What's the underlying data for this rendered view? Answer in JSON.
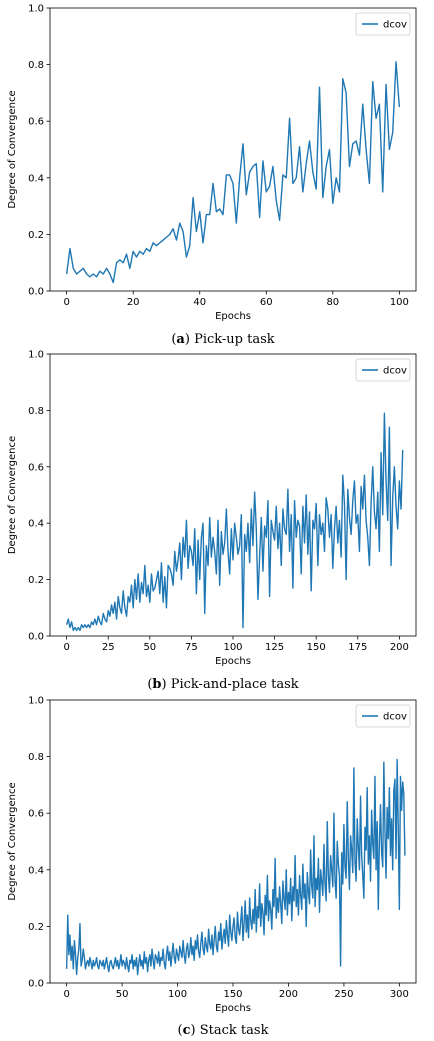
{
  "chart_data": [
    {
      "type": "line",
      "caption_letter": "a",
      "caption_text": " Pick-up task",
      "xlabel": "Epochs",
      "ylabel": "Degree of Convergence",
      "xlim": [
        -5,
        105
      ],
      "ylim": [
        0,
        1.0
      ],
      "xticks": [
        0,
        20,
        40,
        60,
        80,
        100
      ],
      "yticks": [
        0.0,
        0.2,
        0.4,
        0.6,
        0.8,
        1.0
      ],
      "legend": "top-right",
      "grid": false,
      "series": [
        {
          "name": "dcov",
          "color": "#1f77b4",
          "values": [
            0.06,
            0.15,
            0.08,
            0.06,
            0.07,
            0.08,
            0.06,
            0.05,
            0.06,
            0.05,
            0.07,
            0.06,
            0.08,
            0.06,
            0.03,
            0.1,
            0.11,
            0.1,
            0.13,
            0.08,
            0.14,
            0.12,
            0.14,
            0.13,
            0.15,
            0.14,
            0.17,
            0.16,
            0.17,
            0.18,
            0.19,
            0.2,
            0.22,
            0.18,
            0.24,
            0.21,
            0.12,
            0.16,
            0.33,
            0.21,
            0.28,
            0.17,
            0.27,
            0.27,
            0.38,
            0.28,
            0.29,
            0.27,
            0.41,
            0.41,
            0.38,
            0.24,
            0.4,
            0.52,
            0.34,
            0.42,
            0.44,
            0.45,
            0.26,
            0.46,
            0.35,
            0.37,
            0.44,
            0.32,
            0.25,
            0.41,
            0.4,
            0.61,
            0.38,
            0.4,
            0.51,
            0.35,
            0.45,
            0.53,
            0.42,
            0.36,
            0.72,
            0.33,
            0.44,
            0.5,
            0.31,
            0.4,
            0.35,
            0.75,
            0.7,
            0.44,
            0.52,
            0.53,
            0.48,
            0.66,
            0.5,
            0.38,
            0.74,
            0.61,
            0.66,
            0.35,
            0.73,
            0.5,
            0.56,
            0.81,
            0.65
          ]
        }
      ]
    },
    {
      "type": "line",
      "caption_letter": "b",
      "caption_text": " Pick-and-place task",
      "xlabel": "Epochs",
      "ylabel": "Degree of Convergence",
      "xlim": [
        -10,
        210
      ],
      "ylim": [
        0,
        1.0
      ],
      "xticks": [
        0,
        25,
        50,
        75,
        100,
        125,
        150,
        175,
        200
      ],
      "yticks": [
        0.0,
        0.2,
        0.4,
        0.6,
        0.8,
        1.0
      ],
      "legend": "top-right",
      "grid": false,
      "series": [
        {
          "name": "dcov",
          "color": "#1f77b4",
          "values": [
            0.04,
            0.06,
            0.03,
            0.05,
            0.02,
            0.03,
            0.02,
            0.03,
            0.02,
            0.04,
            0.03,
            0.04,
            0.03,
            0.04,
            0.03,
            0.05,
            0.04,
            0.06,
            0.04,
            0.07,
            0.05,
            0.04,
            0.08,
            0.06,
            0.05,
            0.09,
            0.07,
            0.11,
            0.08,
            0.12,
            0.06,
            0.14,
            0.1,
            0.08,
            0.16,
            0.1,
            0.07,
            0.14,
            0.12,
            0.18,
            0.1,
            0.2,
            0.13,
            0.22,
            0.12,
            0.19,
            0.15,
            0.25,
            0.14,
            0.18,
            0.12,
            0.22,
            0.16,
            0.17,
            0.2,
            0.23,
            0.15,
            0.26,
            0.12,
            0.21,
            0.1,
            0.25,
            0.24,
            0.22,
            0.18,
            0.3,
            0.23,
            0.27,
            0.33,
            0.2,
            0.35,
            0.28,
            0.41,
            0.24,
            0.32,
            0.3,
            0.25,
            0.38,
            0.15,
            0.34,
            0.2,
            0.35,
            0.4,
            0.08,
            0.32,
            0.25,
            0.42,
            0.28,
            0.35,
            0.3,
            0.22,
            0.41,
            0.18,
            0.37,
            0.29,
            0.33,
            0.45,
            0.3,
            0.22,
            0.38,
            0.27,
            0.4,
            0.35,
            0.29,
            0.32,
            0.43,
            0.03,
            0.36,
            0.3,
            0.4,
            0.26,
            0.45,
            0.32,
            0.51,
            0.38,
            0.13,
            0.28,
            0.42,
            0.23,
            0.39,
            0.35,
            0.48,
            0.14,
            0.41,
            0.37,
            0.34,
            0.46,
            0.31,
            0.4,
            0.25,
            0.45,
            0.38,
            0.36,
            0.52,
            0.3,
            0.43,
            0.17,
            0.48,
            0.35,
            0.41,
            0.39,
            0.22,
            0.46,
            0.33,
            0.5,
            0.29,
            0.44,
            0.16,
            0.41,
            0.38,
            0.47,
            0.25,
            0.43,
            0.36,
            0.4,
            0.3,
            0.49,
            0.45,
            0.35,
            0.43,
            0.24,
            0.38,
            0.46,
            0.33,
            0.41,
            0.28,
            0.57,
            0.47,
            0.2,
            0.52,
            0.42,
            0.36,
            0.48,
            0.55,
            0.4,
            0.43,
            0.3,
            0.53,
            0.45,
            0.57,
            0.41,
            0.35,
            0.25,
            0.47,
            0.6,
            0.44,
            0.38,
            0.51,
            0.3,
            0.65,
            0.43,
            0.79,
            0.55,
            0.41,
            0.74,
            0.25,
            0.49,
            0.6,
            0.46,
            0.38,
            0.55,
            0.45,
            0.66
          ]
        }
      ]
    },
    {
      "type": "line",
      "caption_letter": "c",
      "caption_text": " Stack task",
      "xlabel": "Epochs",
      "ylabel": "Degree of Convergence",
      "xlim": [
        -15,
        315
      ],
      "ylim": [
        0,
        1.0
      ],
      "xticks": [
        0,
        50,
        100,
        150,
        200,
        250,
        300
      ],
      "yticks": [
        0.0,
        0.2,
        0.4,
        0.6,
        0.8,
        1.0
      ],
      "legend": "top-right",
      "grid": false,
      "series": [
        {
          "name": "dcov",
          "color": "#1f77b4",
          "values": [
            0.05,
            0.24,
            0.1,
            0.17,
            0.08,
            0.13,
            0.05,
            0.15,
            0.1,
            0.03,
            0.09,
            0.12,
            0.21,
            0.06,
            0.08,
            0.12,
            0.09,
            0.05,
            0.07,
            0.08,
            0.06,
            0.09,
            0.07,
            0.05,
            0.08,
            0.06,
            0.07,
            0.09,
            0.06,
            0.05,
            0.08,
            0.07,
            0.06,
            0.08,
            0.05,
            0.07,
            0.09,
            0.06,
            0.04,
            0.07,
            0.08,
            0.06,
            0.05,
            0.07,
            0.09,
            0.06,
            0.08,
            0.05,
            0.07,
            0.1,
            0.06,
            0.08,
            0.07,
            0.05,
            0.09,
            0.06,
            0.04,
            0.08,
            0.07,
            0.1,
            0.05,
            0.08,
            0.06,
            0.09,
            0.03,
            0.07,
            0.1,
            0.06,
            0.08,
            0.05,
            0.11,
            0.07,
            0.09,
            0.04,
            0.08,
            0.1,
            0.06,
            0.12,
            0.08,
            0.05,
            0.1,
            0.09,
            0.07,
            0.11,
            0.06,
            0.09,
            0.08,
            0.12,
            0.07,
            0.05,
            0.1,
            0.13,
            0.08,
            0.11,
            0.06,
            0.1,
            0.14,
            0.09,
            0.07,
            0.12,
            0.1,
            0.08,
            0.13,
            0.11,
            0.09,
            0.15,
            0.1,
            0.07,
            0.12,
            0.14,
            0.09,
            0.11,
            0.16,
            0.1,
            0.13,
            0.08,
            0.15,
            0.12,
            0.17,
            0.11,
            0.09,
            0.14,
            0.18,
            0.12,
            0.1,
            0.16,
            0.13,
            0.11,
            0.19,
            0.14,
            0.12,
            0.17,
            0.1,
            0.15,
            0.2,
            0.13,
            0.11,
            0.18,
            0.15,
            0.21,
            0.12,
            0.16,
            0.19,
            0.14,
            0.22,
            0.17,
            0.13,
            0.24,
            0.18,
            0.15,
            0.2,
            0.23,
            0.16,
            0.14,
            0.25,
            0.19,
            0.17,
            0.22,
            0.27,
            0.15,
            0.21,
            0.29,
            0.18,
            0.24,
            0.16,
            0.3,
            0.22,
            0.19,
            0.26,
            0.21,
            0.33,
            0.18,
            0.27,
            0.23,
            0.35,
            0.2,
            0.28,
            0.25,
            0.17,
            0.31,
            0.24,
            0.38,
            0.22,
            0.29,
            0.26,
            0.19,
            0.33,
            0.27,
            0.44,
            0.23,
            0.3,
            0.25,
            0.34,
            0.28,
            0.21,
            0.36,
            0.3,
            0.26,
            0.4,
            0.24,
            0.32,
            0.28,
            0.37,
            0.22,
            0.34,
            0.29,
            0.45,
            0.27,
            0.33,
            0.24,
            0.38,
            0.31,
            0.26,
            0.42,
            0.3,
            0.35,
            0.2,
            0.39,
            0.32,
            0.28,
            0.47,
            0.34,
            0.3,
            0.52,
            0.27,
            0.37,
            0.33,
            0.44,
            0.25,
            0.4,
            0.36,
            0.31,
            0.49,
            0.35,
            0.29,
            0.57,
            0.38,
            0.32,
            0.45,
            0.4,
            0.34,
            0.6,
            0.36,
            0.3,
            0.5,
            0.42,
            0.38,
            0.06,
            0.46,
            0.35,
            0.56,
            0.41,
            0.37,
            0.64,
            0.44,
            0.33,
            0.52,
            0.47,
            0.39,
            0.76,
            0.43,
            0.36,
            0.58,
            0.48,
            0.4,
            0.66,
            0.45,
            0.38,
            0.3,
            0.55,
            0.47,
            0.69,
            0.42,
            0.52,
            0.36,
            0.61,
            0.49,
            0.44,
            0.73,
            0.4,
            0.57,
            0.26,
            0.5,
            0.63,
            0.46,
            0.41,
            0.78,
            0.54,
            0.37,
            0.62,
            0.51,
            0.69,
            0.45,
            0.58,
            0.4,
            0.68,
            0.72,
            0.44,
            0.79,
            0.55,
            0.26,
            0.73,
            0.61,
            0.71,
            0.67,
            0.45
          ]
        }
      ]
    }
  ]
}
